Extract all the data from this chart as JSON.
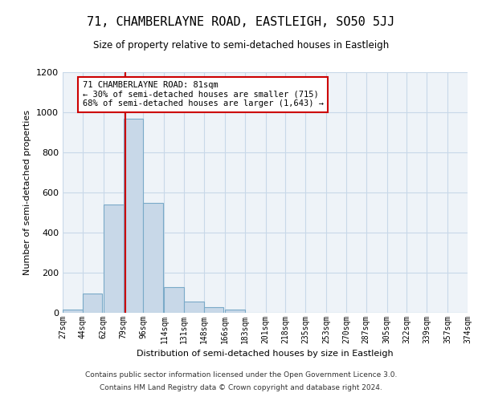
{
  "title": "71, CHAMBERLAYNE ROAD, EASTLEIGH, SO50 5JJ",
  "subtitle": "Size of property relative to semi-detached houses in Eastleigh",
  "xlabel": "Distribution of semi-detached houses by size in Eastleigh",
  "ylabel": "Number of semi-detached properties",
  "bar_color": "#c8d8e8",
  "bar_edge_color": "#7aaac8",
  "grid_color": "#c8d8e8",
  "bg_color": "#eef3f8",
  "bin_starts": [
    27,
    44,
    62,
    79,
    96,
    114,
    131,
    148,
    166,
    183,
    201,
    218,
    235,
    253,
    270,
    287,
    305,
    322,
    339,
    357
  ],
  "bin_width": 17,
  "bin_heights": [
    15,
    95,
    540,
    970,
    550,
    130,
    55,
    30,
    15,
    0,
    0,
    0,
    0,
    0,
    0,
    0,
    0,
    0,
    0,
    0
  ],
  "property_size": 81,
  "annotation_line1": "71 CHAMBERLAYNE ROAD: 81sqm",
  "annotation_line2": "← 30% of semi-detached houses are smaller (715)",
  "annotation_line3": "68% of semi-detached houses are larger (1,643) →",
  "annotation_box_color": "#ffffff",
  "annotation_border_color": "#cc0000",
  "vline_color": "#cc0000",
  "ylim": [
    0,
    1200
  ],
  "yticks": [
    0,
    200,
    400,
    600,
    800,
    1000,
    1200
  ],
  "footer1": "Contains HM Land Registry data © Crown copyright and database right 2024.",
  "footer2": "Contains public sector information licensed under the Open Government Licence 3.0.",
  "tick_labels": [
    "27sqm",
    "44sqm",
    "62sqm",
    "79sqm",
    "96sqm",
    "114sqm",
    "131sqm",
    "148sqm",
    "166sqm",
    "183sqm",
    "201sqm",
    "218sqm",
    "235sqm",
    "253sqm",
    "270sqm",
    "287sqm",
    "305sqm",
    "322sqm",
    "339sqm",
    "357sqm",
    "374sqm"
  ]
}
